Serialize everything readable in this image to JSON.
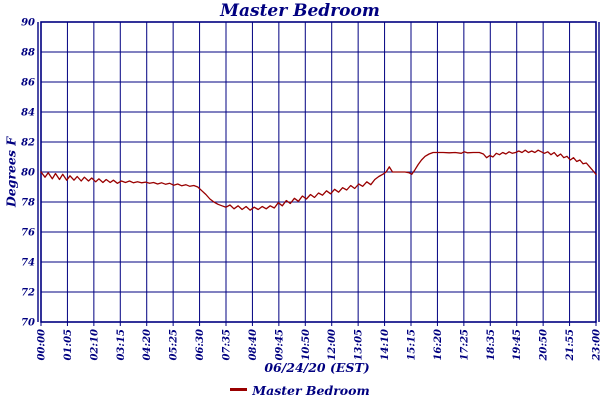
{
  "colors": {
    "axis": "#000080",
    "text": "#000080",
    "line": "#990000",
    "background": "#ffffff"
  },
  "chart_data": {
    "type": "line",
    "title": "Master Bedroom",
    "ylabel": "Degrees F",
    "xlabel": "06/24/20 (EST)",
    "grid": "on",
    "ylim": [
      70,
      90
    ],
    "yticks": [
      70,
      72,
      74,
      76,
      78,
      80,
      82,
      84,
      86,
      88,
      90
    ],
    "xticklabels": [
      "00:00",
      "01:05",
      "02:10",
      "03:15",
      "04:20",
      "05:25",
      "06:30",
      "07:35",
      "08:40",
      "09:45",
      "10:50",
      "12:00",
      "13:05",
      "14:10",
      "15:15",
      "16:20",
      "17:25",
      "18:35",
      "19:45",
      "20:50",
      "21:55",
      "23:00"
    ],
    "x_range_minutes": [
      0,
      1380
    ],
    "legend": {
      "position": "bottom",
      "entries": [
        {
          "label": "Master Bedroom",
          "color": "#990000"
        }
      ]
    },
    "series": [
      {
        "name": "Master Bedroom",
        "color": "#990000",
        "points": [
          [
            0,
            80.0
          ],
          [
            10,
            79.65
          ],
          [
            18,
            79.95
          ],
          [
            28,
            79.55
          ],
          [
            36,
            79.9
          ],
          [
            46,
            79.5
          ],
          [
            54,
            79.85
          ],
          [
            64,
            79.45
          ],
          [
            72,
            79.75
          ],
          [
            82,
            79.45
          ],
          [
            90,
            79.7
          ],
          [
            100,
            79.4
          ],
          [
            108,
            79.65
          ],
          [
            118,
            79.4
          ],
          [
            126,
            79.6
          ],
          [
            136,
            79.35
          ],
          [
            144,
            79.55
          ],
          [
            154,
            79.3
          ],
          [
            162,
            79.5
          ],
          [
            172,
            79.3
          ],
          [
            180,
            79.45
          ],
          [
            190,
            79.25
          ],
          [
            200,
            79.4
          ],
          [
            210,
            79.3
          ],
          [
            220,
            79.4
          ],
          [
            230,
            79.28
          ],
          [
            240,
            79.35
          ],
          [
            250,
            79.28
          ],
          [
            260,
            79.33
          ],
          [
            270,
            79.25
          ],
          [
            280,
            79.3
          ],
          [
            290,
            79.2
          ],
          [
            300,
            79.28
          ],
          [
            310,
            79.18
          ],
          [
            320,
            79.25
          ],
          [
            330,
            79.12
          ],
          [
            340,
            79.2
          ],
          [
            350,
            79.08
          ],
          [
            360,
            79.15
          ],
          [
            370,
            79.05
          ],
          [
            380,
            79.1
          ],
          [
            390,
            79.0
          ],
          [
            400,
            78.75
          ],
          [
            410,
            78.5
          ],
          [
            420,
            78.2
          ],
          [
            430,
            78.0
          ],
          [
            440,
            77.85
          ],
          [
            450,
            77.75
          ],
          [
            460,
            77.65
          ],
          [
            470,
            77.8
          ],
          [
            480,
            77.55
          ],
          [
            490,
            77.75
          ],
          [
            500,
            77.5
          ],
          [
            510,
            77.7
          ],
          [
            520,
            77.45
          ],
          [
            530,
            77.65
          ],
          [
            540,
            77.5
          ],
          [
            550,
            77.7
          ],
          [
            560,
            77.55
          ],
          [
            570,
            77.75
          ],
          [
            580,
            77.6
          ],
          [
            590,
            77.95
          ],
          [
            600,
            77.75
          ],
          [
            610,
            78.1
          ],
          [
            620,
            77.9
          ],
          [
            630,
            78.25
          ],
          [
            640,
            78.05
          ],
          [
            650,
            78.4
          ],
          [
            660,
            78.2
          ],
          [
            670,
            78.5
          ],
          [
            680,
            78.3
          ],
          [
            690,
            78.6
          ],
          [
            700,
            78.45
          ],
          [
            710,
            78.75
          ],
          [
            720,
            78.55
          ],
          [
            730,
            78.85
          ],
          [
            740,
            78.65
          ],
          [
            750,
            78.95
          ],
          [
            760,
            78.8
          ],
          [
            770,
            79.1
          ],
          [
            780,
            78.9
          ],
          [
            790,
            79.2
          ],
          [
            800,
            79.05
          ],
          [
            810,
            79.35
          ],
          [
            820,
            79.15
          ],
          [
            830,
            79.5
          ],
          [
            840,
            79.7
          ],
          [
            850,
            79.85
          ],
          [
            858,
            80.0
          ],
          [
            866,
            80.35
          ],
          [
            874,
            80.0
          ],
          [
            885,
            80.0
          ],
          [
            895,
            80.0
          ],
          [
            905,
            80.0
          ],
          [
            915,
            79.95
          ],
          [
            922,
            79.85
          ],
          [
            930,
            80.15
          ],
          [
            938,
            80.5
          ],
          [
            946,
            80.8
          ],
          [
            955,
            81.05
          ],
          [
            965,
            81.2
          ],
          [
            975,
            81.3
          ],
          [
            985,
            81.3
          ],
          [
            1000,
            81.3
          ],
          [
            1015,
            81.28
          ],
          [
            1030,
            81.3
          ],
          [
            1045,
            81.25
          ],
          [
            1052,
            81.35
          ],
          [
            1060,
            81.28
          ],
          [
            1075,
            81.3
          ],
          [
            1090,
            81.3
          ],
          [
            1100,
            81.2
          ],
          [
            1108,
            80.95
          ],
          [
            1116,
            81.1
          ],
          [
            1124,
            81.0
          ],
          [
            1132,
            81.25
          ],
          [
            1140,
            81.15
          ],
          [
            1148,
            81.3
          ],
          [
            1156,
            81.2
          ],
          [
            1164,
            81.35
          ],
          [
            1172,
            81.25
          ],
          [
            1180,
            81.3
          ],
          [
            1188,
            81.4
          ],
          [
            1196,
            81.3
          ],
          [
            1204,
            81.45
          ],
          [
            1212,
            81.3
          ],
          [
            1220,
            81.4
          ],
          [
            1228,
            81.3
          ],
          [
            1236,
            81.45
          ],
          [
            1244,
            81.35
          ],
          [
            1252,
            81.25
          ],
          [
            1260,
            81.35
          ],
          [
            1268,
            81.15
          ],
          [
            1276,
            81.3
          ],
          [
            1284,
            81.05
          ],
          [
            1292,
            81.2
          ],
          [
            1300,
            80.95
          ],
          [
            1308,
            81.05
          ],
          [
            1316,
            80.8
          ],
          [
            1324,
            80.95
          ],
          [
            1332,
            80.7
          ],
          [
            1340,
            80.8
          ],
          [
            1348,
            80.55
          ],
          [
            1356,
            80.6
          ],
          [
            1364,
            80.35
          ],
          [
            1372,
            80.1
          ],
          [
            1380,
            79.85
          ]
        ]
      }
    ]
  }
}
